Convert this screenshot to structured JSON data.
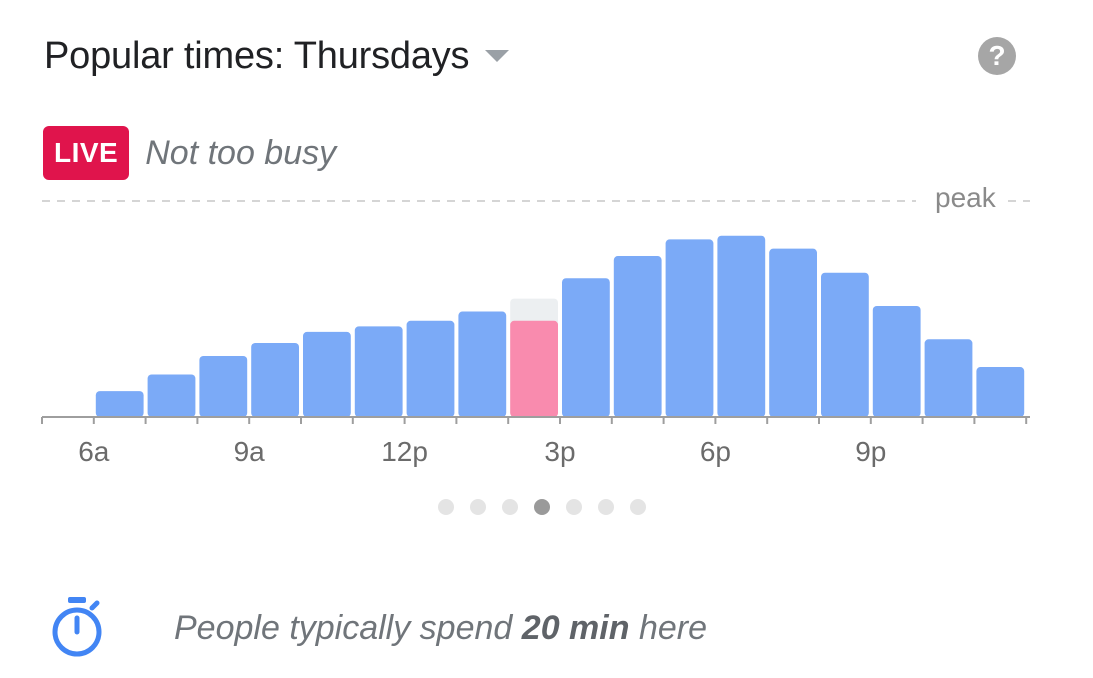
{
  "header": {
    "title": "Popular times: Thursdays",
    "dropdown_icon": "caret-down-icon",
    "help_icon": "help-icon",
    "help_label": "?"
  },
  "live": {
    "badge": "LIVE",
    "status": "Not too busy"
  },
  "colors": {
    "bar": "#7baaf7",
    "live_bar": "#f98bae",
    "live_ghost": "#eceff1",
    "badge": "#e0144c",
    "axis": "#9e9e9e"
  },
  "chart_data": {
    "type": "bar",
    "peak_label": "peak",
    "tick_labels": [
      "6a",
      "9a",
      "12p",
      "3p",
      "6p",
      "9p"
    ],
    "categories": [
      "5a",
      "6a",
      "7a",
      "8a",
      "9a",
      "10a",
      "11a",
      "12p",
      "1p",
      "2p",
      "3p",
      "4p",
      "5p",
      "6p",
      "7p",
      "8p",
      "9p",
      "10p",
      "11p"
    ],
    "values": [
      0,
      14,
      23,
      33,
      40,
      46,
      49,
      52,
      57,
      52,
      75,
      87,
      96,
      98,
      91,
      78,
      60,
      42,
      27
    ],
    "live_index": 9,
    "live_usual_value": 64,
    "ylim": [
      0,
      120
    ]
  },
  "pager": {
    "count": 7,
    "active": 3
  },
  "spend": {
    "icon": "timer-icon",
    "prefix": "People typically spend ",
    "duration": "20 min",
    "suffix": " here"
  }
}
